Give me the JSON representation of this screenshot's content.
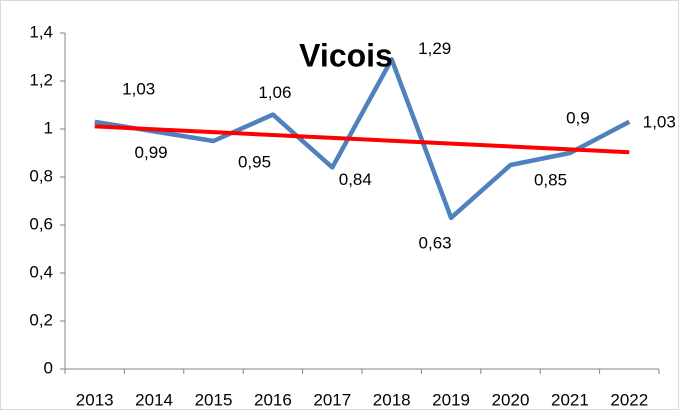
{
  "chart_data": {
    "type": "line",
    "title": "Vicois",
    "categories": [
      "2013",
      "2014",
      "2015",
      "2016",
      "2017",
      "2018",
      "2019",
      "2020",
      "2021",
      "2022"
    ],
    "series": [
      {
        "color": "#4f81bd",
        "values": [
          1.03,
          0.99,
          0.95,
          1.06,
          0.84,
          1.29,
          0.63,
          0.85,
          0.9,
          1.03
        ],
        "value_labels": [
          "1,03",
          "0,99",
          "0,95",
          "1,06",
          "0,84",
          "1,29",
          "0,63",
          "0,85",
          "0,9",
          "1,03"
        ]
      }
    ],
    "trendline": "linear",
    "trendline_color": "#ff0000",
    "ylim": [
      0,
      1.4
    ],
    "yticks": [
      0,
      {
        "value": 0.2,
        "label": "0,2"
      },
      {
        "value": 0.4,
        "label": "0,4"
      },
      {
        "value": 0.6,
        "label": "0,6"
      },
      {
        "value": 0.8,
        "label": "0,8"
      },
      1,
      {
        "value": 1.2,
        "label": "1,2"
      },
      {
        "value": 1.4,
        "label": "1,4"
      }
    ],
    "grid": false
  }
}
